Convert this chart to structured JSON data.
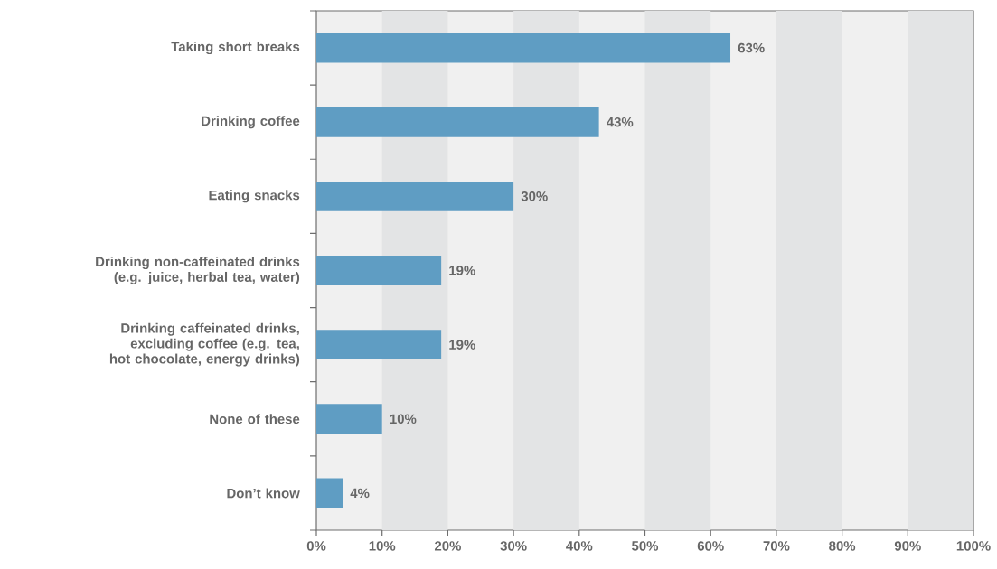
{
  "chart_data": {
    "type": "bar",
    "orientation": "horizontal",
    "categories": [
      "Taking short breaks",
      "Drinking coffee",
      "Eating snacks",
      "Drinking non-caffeinated drinks (e.g. juice, herbal tea, water)",
      "Drinking caffeinated drinks, excluding coffee (e.g. tea, hot chocolate, energy drinks)",
      "None of these",
      "Don’t know"
    ],
    "values": [
      63,
      43,
      30,
      19,
      19,
      10,
      4
    ],
    "value_labels": [
      "63%",
      "43%",
      "30%",
      "19%",
      "19%",
      "10%",
      "4%"
    ],
    "color": "#5f9dc3",
    "xlim": [
      0,
      100
    ],
    "xticks": [
      {
        "value": 0,
        "label": "0%"
      },
      {
        "value": 10,
        "label": "10%"
      },
      {
        "value": 20,
        "label": "20%"
      },
      {
        "value": 30,
        "label": "30%"
      },
      {
        "value": 40,
        "label": "40%"
      },
      {
        "value": 50,
        "label": "50%"
      },
      {
        "value": 60,
        "label": "60%"
      },
      {
        "value": 70,
        "label": "70%"
      },
      {
        "value": 80,
        "label": "80%"
      },
      {
        "value": 90,
        "label": "90%"
      },
      {
        "value": 100,
        "label": "100%"
      }
    ],
    "bands": [
      {
        "axis": "x",
        "from": 10,
        "to": 20,
        "color": "#e3e4e5"
      },
      {
        "axis": "x",
        "from": 30,
        "to": 40,
        "color": "#e3e4e5"
      },
      {
        "axis": "x",
        "from": 50,
        "to": 60,
        "color": "#e3e4e5"
      },
      {
        "axis": "x",
        "from": 70,
        "to": 80,
        "color": "#e3e4e5"
      },
      {
        "axis": "x",
        "from": 90,
        "to": 100,
        "color": "#e3e4e5"
      }
    ]
  }
}
